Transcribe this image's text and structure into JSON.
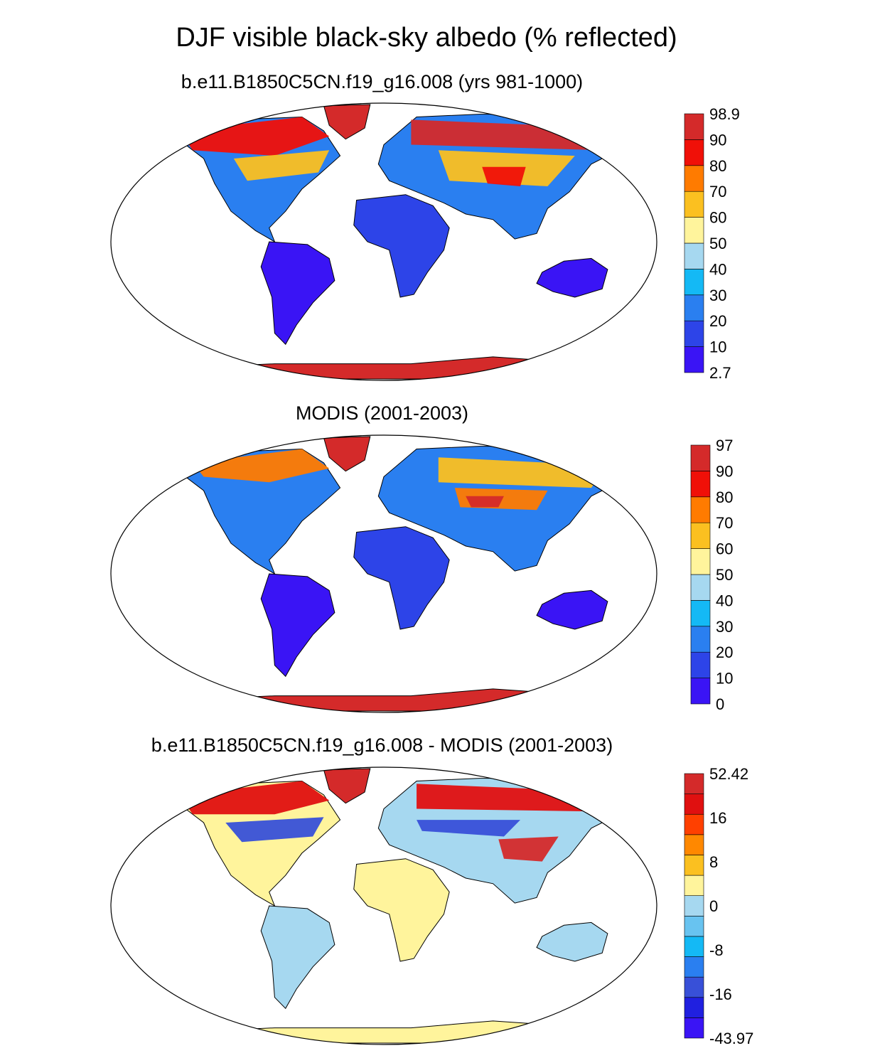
{
  "title": "DJF visible black-sky albedo (% reflected)",
  "panels": [
    {
      "subtitle": "b.e11.B1850C5CN.f19_g16.008 (yrs 981-1000)",
      "colorbar_labels": [
        "2.7",
        "10",
        "20",
        "30",
        "40",
        "50",
        "60",
        "70",
        "80",
        "90",
        "98.9"
      ],
      "colors": [
        "#3a14f5",
        "#2d44e8",
        "#2a7ff0",
        "#14b9f5",
        "#a6d8f0",
        "#fff49c",
        "#fbc020",
        "#ff7b00",
        "#f01008",
        "#d42a2a"
      ],
      "fill_scheme": "model"
    },
    {
      "subtitle": "MODIS (2001-2003)",
      "colorbar_labels": [
        "0",
        "10",
        "20",
        "30",
        "40",
        "50",
        "60",
        "70",
        "80",
        "90",
        "97"
      ],
      "colors": [
        "#3a14f5",
        "#2d44e8",
        "#2a7ff0",
        "#14b9f5",
        "#a6d8f0",
        "#fff49c",
        "#fbc020",
        "#ff7b00",
        "#f01008",
        "#d42a2a"
      ],
      "fill_scheme": "obs"
    },
    {
      "subtitle": "b.e11.B1850C5CN.f19_g16.008 - MODIS (2001-2003)",
      "colorbar_labels": [
        "-43.97",
        "",
        "-16",
        "",
        "-8",
        "",
        "0",
        "",
        "8",
        "",
        "16",
        "",
        "52.42"
      ],
      "colors": [
        "#3a14f5",
        "#2020e0",
        "#3850d8",
        "#2a7ff0",
        "#14b9f5",
        "#68c3f0",
        "#a6d8f0",
        "#fff49c",
        "#fbc020",
        "#ff8800",
        "#ff4000",
        "#e01010",
        "#d42a2a"
      ],
      "fill_scheme": "diff"
    }
  ]
}
